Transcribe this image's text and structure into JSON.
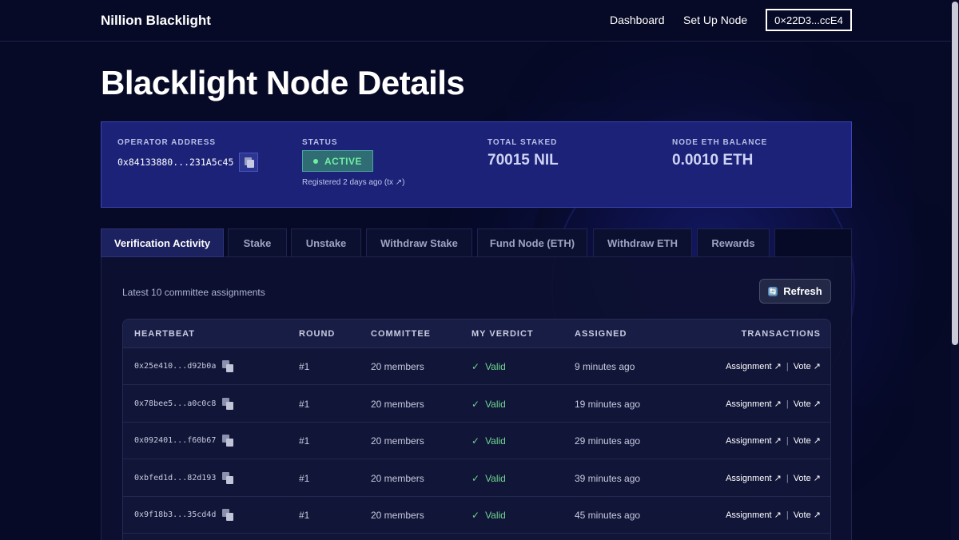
{
  "header": {
    "brand": "Nillion Blacklight",
    "nav": {
      "dashboard": "Dashboard",
      "setup": "Set Up Node"
    },
    "wallet": "0×22D3...ccE4"
  },
  "page_title": "Blacklight Node Details",
  "info": {
    "operator_label": "OPERATOR ADDRESS",
    "operator_address": "0x84133880...231A5c45",
    "status_label": "STATUS",
    "status_value": "ACTIVE",
    "registered": "Registered 2 days ago (tx ↗)",
    "staked_label": "TOTAL STAKED",
    "staked_value": "70015 NIL",
    "balance_label": "NODE ETH BALANCE",
    "balance_value": "0.0010 ETH"
  },
  "tabs": [
    "Verification Activity",
    "Stake",
    "Unstake",
    "Withdraw Stake",
    "Fund Node (ETH)",
    "Withdraw ETH",
    "Rewards"
  ],
  "activity": {
    "subtitle": "Latest 10 committee assignments",
    "refresh_label": "Refresh",
    "refresh_icon": "🔄",
    "columns": {
      "heartbeat": "HEARTBEAT",
      "round": "ROUND",
      "committee": "COMMITTEE",
      "verdict": "MY VERDICT",
      "assigned": "ASSIGNED",
      "transactions": "TRANSACTIONS"
    },
    "rows": [
      {
        "heartbeat": "0x25e410...d92b0a",
        "round": "#1",
        "committee": "20 members",
        "verdict": "Valid",
        "assigned": "9 minutes ago",
        "assignment": "Assignment ↗",
        "vote": "Vote ↗"
      },
      {
        "heartbeat": "0x78bee5...a0c0c8",
        "round": "#1",
        "committee": "20 members",
        "verdict": "Valid",
        "assigned": "19 minutes ago",
        "assignment": "Assignment ↗",
        "vote": "Vote ↗"
      },
      {
        "heartbeat": "0x092401...f60b67",
        "round": "#1",
        "committee": "20 members",
        "verdict": "Valid",
        "assigned": "29 minutes ago",
        "assignment": "Assignment ↗",
        "vote": "Vote ↗"
      },
      {
        "heartbeat": "0xbfed1d...82d193",
        "round": "#1",
        "committee": "20 members",
        "verdict": "Valid",
        "assigned": "39 minutes ago",
        "assignment": "Assignment ↗",
        "vote": "Vote ↗"
      },
      {
        "heartbeat": "0x9f18b3...35cd4d",
        "round": "#1",
        "committee": "20 members",
        "verdict": "Valid",
        "assigned": "45 minutes ago",
        "assignment": "Assignment ↗",
        "vote": "Vote ↗"
      }
    ]
  },
  "colors": {
    "background": "#070a26",
    "panel": "#1b2278",
    "status_green": "#6ff0a0",
    "verdict_green": "#6fd58e"
  }
}
